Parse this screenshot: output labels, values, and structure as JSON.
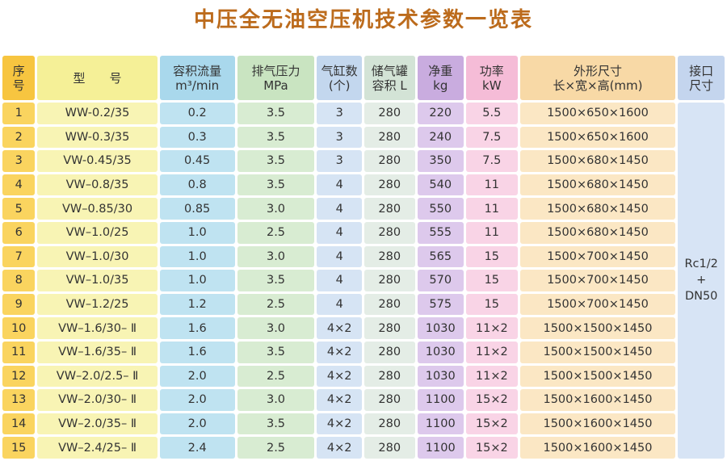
{
  "title": "中压全无油空压机技术参数一览表",
  "headers": {
    "seq": [
      "序",
      "号"
    ],
    "model": [
      "型　　号"
    ],
    "flow": [
      "容积流量",
      "m³/min"
    ],
    "pressure": [
      "排气压力",
      "MPa"
    ],
    "cylinders": [
      "气缸数",
      "(个)"
    ],
    "tank": [
      "储气罐",
      "容积 L"
    ],
    "weight": [
      "净重",
      "kg"
    ],
    "power": [
      "功率",
      "kW"
    ],
    "dimensions": [
      "外形尺寸",
      "长×宽×高(mm)"
    ],
    "port": [
      "接口",
      "尺寸"
    ]
  },
  "rows": [
    [
      "1",
      "WW-0.2/35",
      "0.2",
      "3.5",
      "3",
      "280",
      "220",
      "5.5",
      "1500×650×1600"
    ],
    [
      "2",
      "WW-0.3/35",
      "0.3",
      "3.5",
      "3",
      "280",
      "240",
      "7.5",
      "1500×650×1600"
    ],
    [
      "3",
      "VW-0.45/35",
      "0.45",
      "3.5",
      "3",
      "280",
      "350",
      "7.5",
      "1500×680×1450"
    ],
    [
      "4",
      "VW–0.8/35",
      "0.8",
      "3.5",
      "4",
      "280",
      "540",
      "11",
      "1500×680×1450"
    ],
    [
      "5",
      "VW–0.85/30",
      "0.85",
      "3.0",
      "4",
      "280",
      "550",
      "11",
      "1500×680×1450"
    ],
    [
      "6",
      "VW–1.0/25",
      "1.0",
      "2.5",
      "4",
      "280",
      "555",
      "11",
      "1500×680×1450"
    ],
    [
      "7",
      "VW–1.0/30",
      "1.0",
      "3.0",
      "4",
      "280",
      "565",
      "15",
      "1500×700×1450"
    ],
    [
      "8",
      "VW–1.0/35",
      "1.0",
      "3.5",
      "4",
      "280",
      "570",
      "15",
      "1500×700×1450"
    ],
    [
      "9",
      "VW–1.2/25",
      "1.2",
      "2.5",
      "4",
      "280",
      "575",
      "15",
      "1500×700×1450"
    ],
    [
      "10",
      "VW–1.6/30– Ⅱ",
      "1.6",
      "3.0",
      "4×2",
      "280",
      "1030",
      "11×2",
      "1500×1500×1450"
    ],
    [
      "11",
      "VW–1.6/35– Ⅱ",
      "1.6",
      "3.5",
      "4×2",
      "280",
      "1030",
      "11×2",
      "1500×1500×1450"
    ],
    [
      "12",
      "VW–2.0/2.5– Ⅱ",
      "2.0",
      "2.5",
      "4×2",
      "280",
      "1030",
      "11×2",
      "1500×1500×1450"
    ],
    [
      "13",
      "VW–2.0/30– Ⅱ",
      "2.0",
      "3.0",
      "4×2",
      "280",
      "1100",
      "15×2",
      "1500×1600×1450"
    ],
    [
      "14",
      "VW–2.0/35– Ⅱ",
      "2.0",
      "3.5",
      "4×2",
      "280",
      "1100",
      "15×2",
      "1500×1600×1450"
    ],
    [
      "15",
      "VW–2.4/25– Ⅱ",
      "2.4",
      "2.5",
      "4×2",
      "280",
      "1100",
      "15×2",
      "1500×1600×1450"
    ]
  ],
  "port_value": [
    "Rc1/2",
    "+",
    "DN50"
  ]
}
